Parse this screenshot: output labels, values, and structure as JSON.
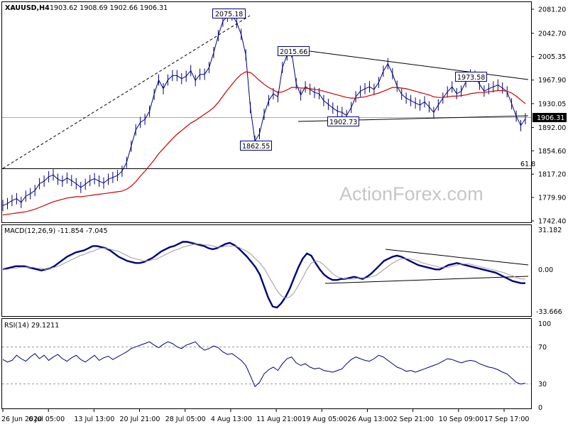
{
  "header": {
    "symbol": "XAUUSD,H4",
    "ohlc": "1903.62 1908.69 1902.66 1906.31",
    "macd_title": "MACD(12,26,9) -11.854 -7.045",
    "rsi_title": "RSI(14) 29.1211",
    "watermark": "ActionForex.com"
  },
  "chart_data": [
    {
      "type": "line",
      "panel": "price",
      "y_ticks": [
        "2081.20",
        "2042.70",
        "2005.35",
        "1967.90",
        "1930.05",
        "1892.00",
        "1854.60",
        "1817.20",
        "1779.90",
        "1742.40"
      ],
      "ylim": [
        1742.4,
        2081.2
      ],
      "current_price": "1906.31",
      "x_ticks": [
        "26 Jun 2020",
        "6 Jul 05:00",
        "13 Jul 13:00",
        "20 Jul 21:00",
        "28 Jul 05:00",
        "4 Aug 13:00",
        "11 Aug 21:00",
        "19 Aug 05:00",
        "26 Aug 13:00",
        "2 Sep 21:00",
        "10 Sep 09:00",
        "17 Sep 17:00"
      ],
      "annotations": [
        "2075.18",
        "2015.66",
        "1973.58",
        "1902.73",
        "1862.55"
      ],
      "fib_label": "61.8",
      "fib_level": 1826.5,
      "series": [
        {
          "color": "#000080",
          "values": [
            1767,
            1770,
            1775,
            1778,
            1772,
            1782,
            1786,
            1791,
            1802,
            1806,
            1813,
            1816,
            1809,
            1806,
            1811,
            1807,
            1802,
            1796,
            1801,
            1807,
            1810,
            1806,
            1803,
            1809,
            1812,
            1815,
            1822,
            1836,
            1862,
            1888,
            1900,
            1905,
            1918,
            1945,
            1968,
            1954,
            1968,
            1975,
            1975,
            1970,
            1974,
            1983,
            1967,
            1977,
            1977,
            1988,
            2012,
            2039,
            2062,
            2070,
            2072,
            2060,
            2041,
            2008,
            1924,
            1870,
            1882,
            1913,
            1935,
            1946,
            1941,
            1988,
            2008,
            2013,
            1962,
            1944,
            1957,
            1953,
            1948,
            1946,
            1935,
            1929,
            1923,
            1918,
            1916,
            1911,
            1924,
            1941,
            1950,
            1954,
            1957,
            1953,
            1964,
            1982,
            1994,
            1978,
            1958,
            1945,
            1939,
            1935,
            1931,
            1928,
            1933,
            1925,
            1916,
            1928,
            1939,
            1949,
            1957,
            1946,
            1950,
            1965,
            1976,
            1974,
            1961,
            1950,
            1954,
            1957,
            1960,
            1955,
            1949,
            1930,
            1910,
            1895,
            1906
          ]
        },
        {
          "color": "#d00000",
          "values": [
            1752,
            1753,
            1754,
            1755,
            1756,
            1757,
            1759,
            1761,
            1764,
            1767,
            1770,
            1773,
            1775,
            1777,
            1779,
            1780,
            1781,
            1781,
            1782,
            1783,
            1784,
            1785,
            1786,
            1787,
            1788,
            1789,
            1790,
            1793,
            1798,
            1805,
            1814,
            1822,
            1831,
            1840,
            1850,
            1858,
            1866,
            1874,
            1881,
            1887,
            1893,
            1899,
            1903,
            1908,
            1913,
            1918,
            1924,
            1932,
            1942,
            1952,
            1961,
            1970,
            1977,
            1981,
            1980,
            1974,
            1967,
            1961,
            1956,
            1952,
            1948,
            1949,
            1952,
            1956,
            1956,
            1955,
            1955,
            1954,
            1953,
            1952,
            1950,
            1948,
            1946,
            1944,
            1942,
            1940,
            1939,
            1939,
            1940,
            1941,
            1943,
            1945,
            1947,
            1950,
            1953,
            1956,
            1956,
            1955,
            1954,
            1952,
            1950,
            1948,
            1946,
            1944,
            1941,
            1940,
            1940,
            1941,
            1942,
            1942,
            1943,
            1944,
            1946,
            1947,
            1948,
            1948,
            1949,
            1950,
            1951,
            1951,
            1950,
            1947,
            1942,
            1936,
            1930
          ]
        }
      ]
    },
    {
      "type": "line",
      "panel": "macd",
      "y_ticks": [
        "31.182",
        "0.00",
        "-33.666"
      ],
      "ylim": [
        -40,
        35
      ],
      "series": [
        {
          "color": "#000080",
          "values": [
            2,
            3,
            4,
            5,
            5,
            5,
            4,
            3,
            2,
            1,
            2,
            3,
            5,
            8,
            11,
            14,
            16,
            18,
            19,
            20,
            22,
            24,
            24,
            23,
            22,
            20,
            17,
            14,
            12,
            10,
            9,
            8,
            8,
            9,
            11,
            13,
            16,
            19,
            21,
            23,
            24,
            26,
            28,
            28,
            27,
            26,
            25,
            24,
            22,
            21,
            22,
            24,
            26,
            27,
            25,
            22,
            18,
            14,
            9,
            4,
            -3,
            -14,
            -25,
            -33,
            -34,
            -30,
            -24,
            -16,
            -6,
            4,
            12,
            17,
            15,
            8,
            2,
            -3,
            -6,
            -8,
            -8,
            -7,
            -7,
            -6,
            -5,
            -6,
            -7,
            -5,
            -2,
            2,
            6,
            10,
            12,
            14,
            15,
            14,
            12,
            10,
            8,
            6,
            5,
            4,
            3,
            2,
            2,
            4,
            6,
            7,
            8,
            7,
            6,
            5,
            4,
            3,
            2,
            1,
            0,
            -1,
            -3,
            -5,
            -7,
            -9,
            -10,
            -11,
            -11
          ]
        },
        {
          "color": "#9a9a9a",
          "values": [
            2,
            2,
            3,
            3,
            4,
            4,
            4,
            4,
            3,
            3,
            2,
            3,
            4,
            5,
            7,
            9,
            11,
            13,
            15,
            16,
            18,
            19,
            21,
            22,
            22,
            21,
            20,
            19,
            17,
            15,
            13,
            12,
            11,
            10,
            10,
            11,
            12,
            14,
            16,
            18,
            20,
            21,
            23,
            24,
            25,
            26,
            26,
            25,
            25,
            24,
            23,
            23,
            24,
            24,
            24,
            23,
            21,
            19,
            16,
            12,
            8,
            3,
            -4,
            -11,
            -18,
            -23,
            -25,
            -24,
            -20,
            -13,
            -6,
            2,
            8,
            10,
            9,
            6,
            2,
            -2,
            -5,
            -6,
            -7,
            -7,
            -7,
            -6,
            -6,
            -6,
            -5,
            -4,
            -1,
            2,
            5,
            8,
            10,
            12,
            12,
            12,
            11,
            10,
            8,
            7,
            6,
            5,
            4,
            4,
            4,
            5,
            6,
            7,
            7,
            7,
            6,
            5,
            4,
            3,
            2,
            1,
            0,
            -1,
            -3,
            -4,
            -6,
            -7,
            -7
          ]
        }
      ]
    },
    {
      "type": "line",
      "panel": "rsi",
      "y_ticks": [
        "100",
        "70",
        "30",
        "0"
      ],
      "ylim": [
        0,
        100
      ],
      "levels": [
        70,
        30
      ],
      "series": [
        {
          "color": "#000080",
          "values": [
            57,
            54,
            56,
            62,
            58,
            55,
            60,
            64,
            58,
            62,
            56,
            60,
            63,
            58,
            55,
            59,
            62,
            57,
            54,
            58,
            62,
            56,
            59,
            61,
            57,
            60,
            63,
            66,
            70,
            72,
            74,
            76,
            78,
            74,
            71,
            75,
            78,
            76,
            72,
            70,
            74,
            76,
            78,
            72,
            68,
            70,
            73,
            71,
            66,
            63,
            64,
            60,
            56,
            50,
            38,
            25,
            30,
            40,
            45,
            48,
            44,
            52,
            58,
            60,
            53,
            50,
            52,
            48,
            46,
            47,
            44,
            43,
            42,
            44,
            46,
            52,
            57,
            60,
            58,
            56,
            55,
            58,
            62,
            60,
            56,
            52,
            48,
            46,
            43,
            44,
            42,
            44,
            46,
            48,
            50,
            52,
            55,
            58,
            57,
            55,
            53,
            55,
            56,
            55,
            52,
            50,
            48,
            47,
            45,
            42,
            40,
            35,
            30,
            28,
            29
          ]
        }
      ]
    }
  ]
}
